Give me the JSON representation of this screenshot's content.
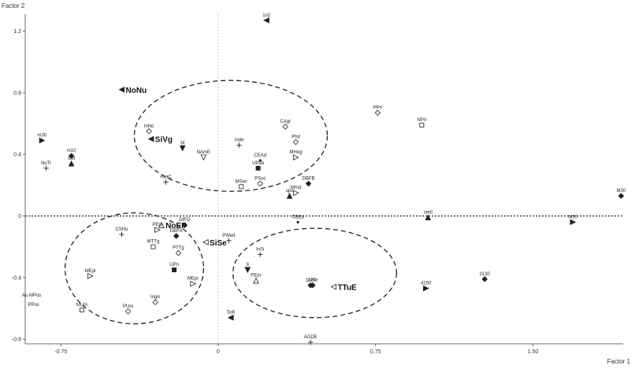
{
  "chart_data": {
    "type": "scatter",
    "xlabel": "Factor 1",
    "ylabel": "Factor 2",
    "xlim": [
      -0.92,
      1.93
    ],
    "ylim": [
      -0.83,
      1.31
    ],
    "xticks": [
      -0.75,
      0,
      0.75,
      1.5
    ],
    "xtick_labels": [
      "-0.75",
      "0",
      "0.75",
      "1.50"
    ],
    "yticks": [
      1.2,
      0.8,
      0.4,
      0,
      -0.4,
      -0.8
    ],
    "ytick_labels": [
      "1.2",
      "0.8",
      "0.4",
      "0",
      "-0.4",
      "-0.8"
    ],
    "reference_lines": {
      "x": 0,
      "y": 0
    },
    "points": [
      {
        "label": "1o2",
        "x": 0.23,
        "y": 1.27,
        "marker": "tri-left"
      },
      {
        "label": "NoNu",
        "x": -0.46,
        "y": 0.82,
        "marker": "tri-left",
        "group": true
      },
      {
        "label": "PPri",
        "x": 0.76,
        "y": 0.67,
        "marker": "diamond-open"
      },
      {
        "label": "NPri",
        "x": 0.97,
        "y": 0.59,
        "marker": "square-open"
      },
      {
        "label": "InNo",
        "x": -0.33,
        "y": 0.55,
        "marker": "diamond-open"
      },
      {
        "label": "CAgr",
        "x": 0.32,
        "y": 0.58,
        "marker": "diamond-open"
      },
      {
        "label": "SiVg",
        "x": -0.32,
        "y": 0.5,
        "marker": "tri-left",
        "group": true
      },
      {
        "label": "m30",
        "x": -0.84,
        "y": 0.49,
        "marker": "tri-right"
      },
      {
        "label": "Inde",
        "x": 0.1,
        "y": 0.46,
        "marker": "plus"
      },
      {
        "label": "Phd",
        "x": 0.37,
        "y": 0.48,
        "marker": "diamond-open"
      },
      {
        "label": "m10",
        "x": -0.7,
        "y": 0.39,
        "marker": "diamond"
      },
      {
        "label": "M",
        "x": -0.17,
        "y": 0.44,
        "marker": "tri-down"
      },
      {
        "label": "MHog",
        "x": 0.37,
        "y": 0.38,
        "marker": "tri-right-open"
      },
      {
        "label": "NoTr",
        "x": -0.82,
        "y": 0.31,
        "marker": "plus"
      },
      {
        "label": "solt",
        "x": -0.7,
        "y": 0.34,
        "marker": "tri-up"
      },
      {
        "label": "NAmE",
        "x": -0.07,
        "y": 0.38,
        "marker": "tri-down-open"
      },
      {
        "label": "UPub",
        "x": 0.19,
        "y": 0.31,
        "marker": "square"
      },
      {
        "label": "CEAd",
        "x": 0.2,
        "y": 0.36,
        "marker": "dot"
      },
      {
        "label": "DBFB",
        "x": 0.43,
        "y": 0.21,
        "marker": "diamond"
      },
      {
        "label": "AsaC",
        "x": -0.25,
        "y": 0.22,
        "marker": "plus"
      },
      {
        "label": "MSec",
        "x": 0.11,
        "y": 0.19,
        "marker": "square-open"
      },
      {
        "label": "PSoc",
        "x": 0.2,
        "y": 0.21,
        "marker": "diamond-open"
      },
      {
        "label": "MInd",
        "x": 0.37,
        "y": 0.15,
        "marker": "tri-right-open"
      },
      {
        "label": "upc",
        "x": 0.34,
        "y": 0.13,
        "marker": "tri-up"
      },
      {
        "label": "M30",
        "x": 1.92,
        "y": 0.13,
        "marker": "diamond"
      },
      {
        "label": "sedi",
        "x": 1.0,
        "y": -0.01,
        "marker": "tri-up"
      },
      {
        "label": "M50",
        "x": 1.69,
        "y": -0.04,
        "marker": "tri-right"
      },
      {
        "label": "NoEF",
        "x": -0.27,
        "y": -0.06,
        "marker": "tri-up-open",
        "group": true
      },
      {
        "label": "CBEd",
        "x": 0.38,
        "y": -0.04,
        "marker": "dot"
      },
      {
        "label": "DIFO",
        "x": -0.16,
        "y": -0.06,
        "marker": "diamond"
      },
      {
        "label": "PEpl",
        "x": -0.29,
        "y": -0.09,
        "marker": "tri-right-open"
      },
      {
        "label": "CSHu",
        "x": -0.46,
        "y": -0.12,
        "marker": "plus"
      },
      {
        "label": "DBFA",
        "x": -0.2,
        "y": -0.13,
        "marker": "diamond"
      },
      {
        "label": "PWed",
        "x": 0.05,
        "y": -0.16,
        "marker": "plus"
      },
      {
        "label": "MTTg",
        "x": -0.31,
        "y": -0.2,
        "marker": "square-open"
      },
      {
        "label": "PTTg",
        "x": -0.19,
        "y": -0.24,
        "marker": "diamond-open"
      },
      {
        "label": "SiSe",
        "x": -0.06,
        "y": -0.17,
        "marker": "tri-left-open",
        "group": true
      },
      {
        "label": "InSi",
        "x": 0.2,
        "y": -0.25,
        "marker": "plus"
      },
      {
        "label": "II",
        "x": 0.14,
        "y": -0.35,
        "marker": "tri-down"
      },
      {
        "label": "UPri",
        "x": -0.21,
        "y": -0.35,
        "marker": "square"
      },
      {
        "label": "MEpl",
        "x": -0.61,
        "y": -0.39,
        "marker": "tri-right-open"
      },
      {
        "label": "TTuE",
        "x": 0.55,
        "y": -0.46,
        "marker": "tri-left-open",
        "group": true
      },
      {
        "label": "PEpr",
        "x": 0.18,
        "y": -0.42,
        "marker": "tri-up-open"
      },
      {
        "label": "1120",
        "x": 0.44,
        "y": -0.45,
        "marker": "diamond"
      },
      {
        "label": "casa",
        "x": 0.45,
        "y": -0.45,
        "marker": "diamond"
      },
      {
        "label": "MEpr",
        "x": -0.12,
        "y": -0.44,
        "marker": "tri-right-open"
      },
      {
        "label": "2130",
        "x": 1.27,
        "y": -0.41,
        "marker": "diamond"
      },
      {
        "label": "4150",
        "x": 0.99,
        "y": -0.47,
        "marker": "tri-right"
      },
      {
        "label": "IngA",
        "x": -0.3,
        "y": -0.56,
        "marker": "diamond-open"
      },
      {
        "label": "PUni",
        "x": -0.43,
        "y": -0.62,
        "marker": "diamond-open"
      },
      {
        "label": "MUni",
        "x": -0.65,
        "y": -0.61,
        "marker": "square-open"
      },
      {
        "label": "So6",
        "x": 0.06,
        "y": -0.66,
        "marker": "tri-left"
      },
      {
        "label": "Au MPos",
        "x": -0.89,
        "y": -0.55,
        "marker": "none"
      },
      {
        "label": "PPos",
        "x": -0.88,
        "y": -0.61,
        "marker": "none"
      },
      {
        "label": "AGDE",
        "x": 0.44,
        "y": -0.82,
        "marker": "plus"
      }
    ],
    "ellipses": [
      {
        "cx": 0.06,
        "cy": 0.52,
        "rx": 0.46,
        "ry": 0.36
      },
      {
        "cx": -0.4,
        "cy": -0.34,
        "rx": 0.33,
        "ry": 0.36
      },
      {
        "cx": 0.46,
        "cy": -0.37,
        "rx": 0.39,
        "ry": 0.29
      }
    ]
  }
}
